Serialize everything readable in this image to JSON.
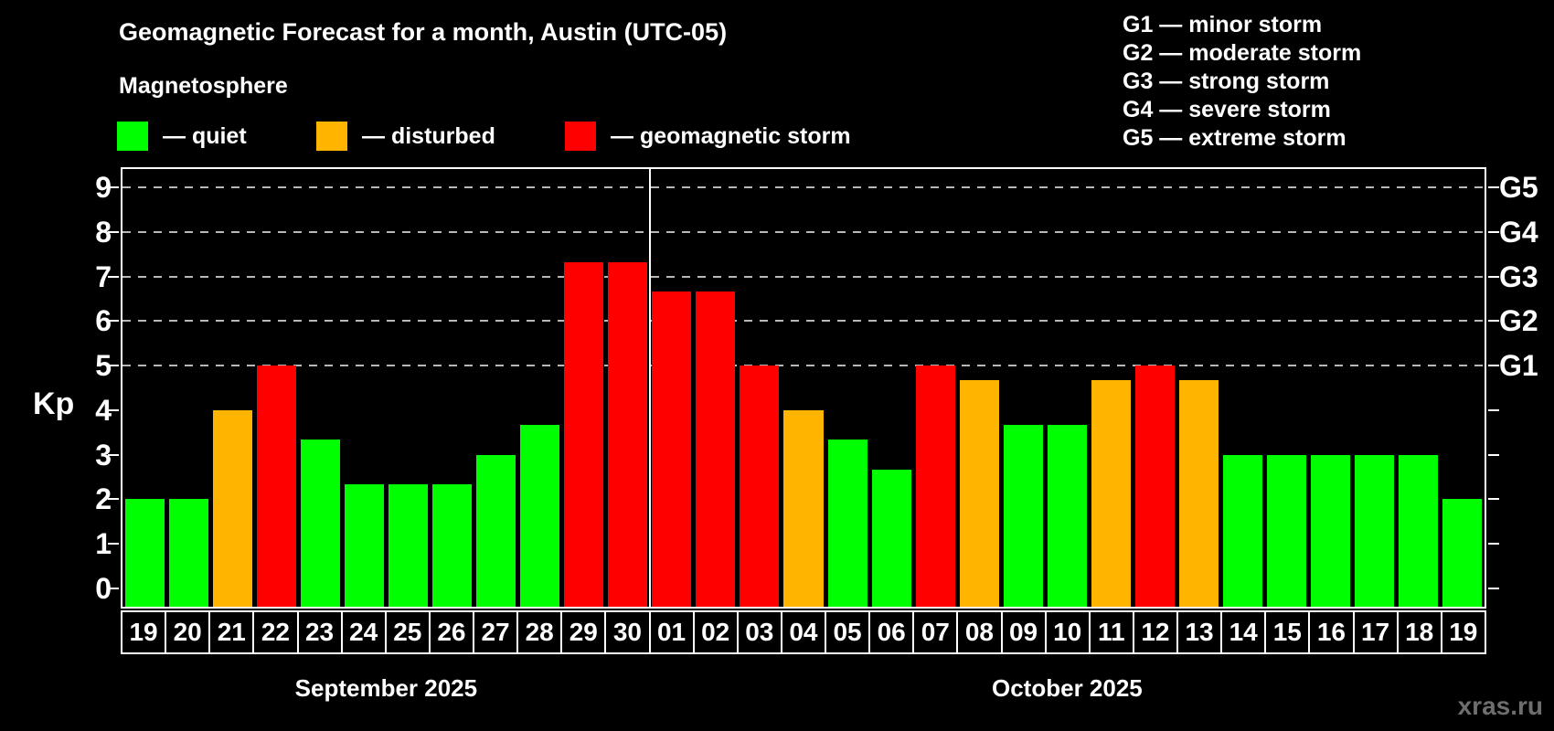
{
  "header": {
    "title": "Geomagnetic Forecast for a month, Austin (UTC-05)",
    "subtitle": "Magnetosphere"
  },
  "legend": {
    "items": [
      {
        "status": "quiet",
        "label": "— quiet",
        "color": "#00ff00"
      },
      {
        "status": "disturbed",
        "label": "— disturbed",
        "color": "#ffb400"
      },
      {
        "status": "storm",
        "label": "— geomagnetic storm",
        "color": "#ff0000"
      }
    ]
  },
  "g_legend": {
    "lines": [
      "G1 — minor storm",
      "G2 — moderate storm",
      "G3 — strong storm",
      "G4 — severe storm",
      "G5 — extreme storm"
    ]
  },
  "chart_data": {
    "type": "bar",
    "title": "Geomagnetic Forecast for a month, Austin (UTC-05)",
    "subtitle": "Magnetosphere",
    "ylabel": "Kp",
    "ylim": [
      0,
      9
    ],
    "y_ticks": [
      0,
      1,
      2,
      3,
      4,
      5,
      6,
      7,
      8,
      9
    ],
    "gridlines_at": [
      5,
      6,
      7,
      8,
      9
    ],
    "grid_style": "dashed horizontal gray lines at Kp 5–9",
    "right_axis_labels": [
      {
        "label": "G1",
        "kp": 5
      },
      {
        "label": "G2",
        "kp": 6
      },
      {
        "label": "G3",
        "kp": 7
      },
      {
        "label": "G4",
        "kp": 8
      },
      {
        "label": "G5",
        "kp": 9
      }
    ],
    "categories": [
      "19",
      "20",
      "21",
      "22",
      "23",
      "24",
      "25",
      "26",
      "27",
      "28",
      "29",
      "30",
      "01",
      "02",
      "03",
      "04",
      "05",
      "06",
      "07",
      "08",
      "09",
      "10",
      "11",
      "12",
      "13",
      "14",
      "15",
      "16",
      "17",
      "18",
      "19"
    ],
    "values": [
      2,
      2,
      4,
      5,
      3.33,
      2.33,
      2.33,
      2.33,
      3,
      3.67,
      7.33,
      7.33,
      6.67,
      6.67,
      5,
      4,
      3.33,
      2.67,
      5,
      4.67,
      3.67,
      3.67,
      4.67,
      5,
      4.67,
      3,
      3,
      3,
      3,
      3,
      2
    ],
    "statuses": [
      "quiet",
      "quiet",
      "disturbed",
      "storm",
      "quiet",
      "quiet",
      "quiet",
      "quiet",
      "quiet",
      "quiet",
      "storm",
      "storm",
      "storm",
      "storm",
      "storm",
      "disturbed",
      "quiet",
      "quiet",
      "storm",
      "disturbed",
      "quiet",
      "quiet",
      "disturbed",
      "storm",
      "disturbed",
      "quiet",
      "quiet",
      "quiet",
      "quiet",
      "quiet",
      "quiet"
    ],
    "months": [
      {
        "label": "September 2025",
        "days": 12
      },
      {
        "label": "October 2025",
        "days": 19
      }
    ],
    "legend_position": "top-left",
    "colors": {
      "quiet": "#00ff00",
      "disturbed": "#ffb400",
      "storm": "#ff0000"
    }
  },
  "watermark": {
    "label": "xras.ru",
    "color": "#6e6e6e"
  }
}
